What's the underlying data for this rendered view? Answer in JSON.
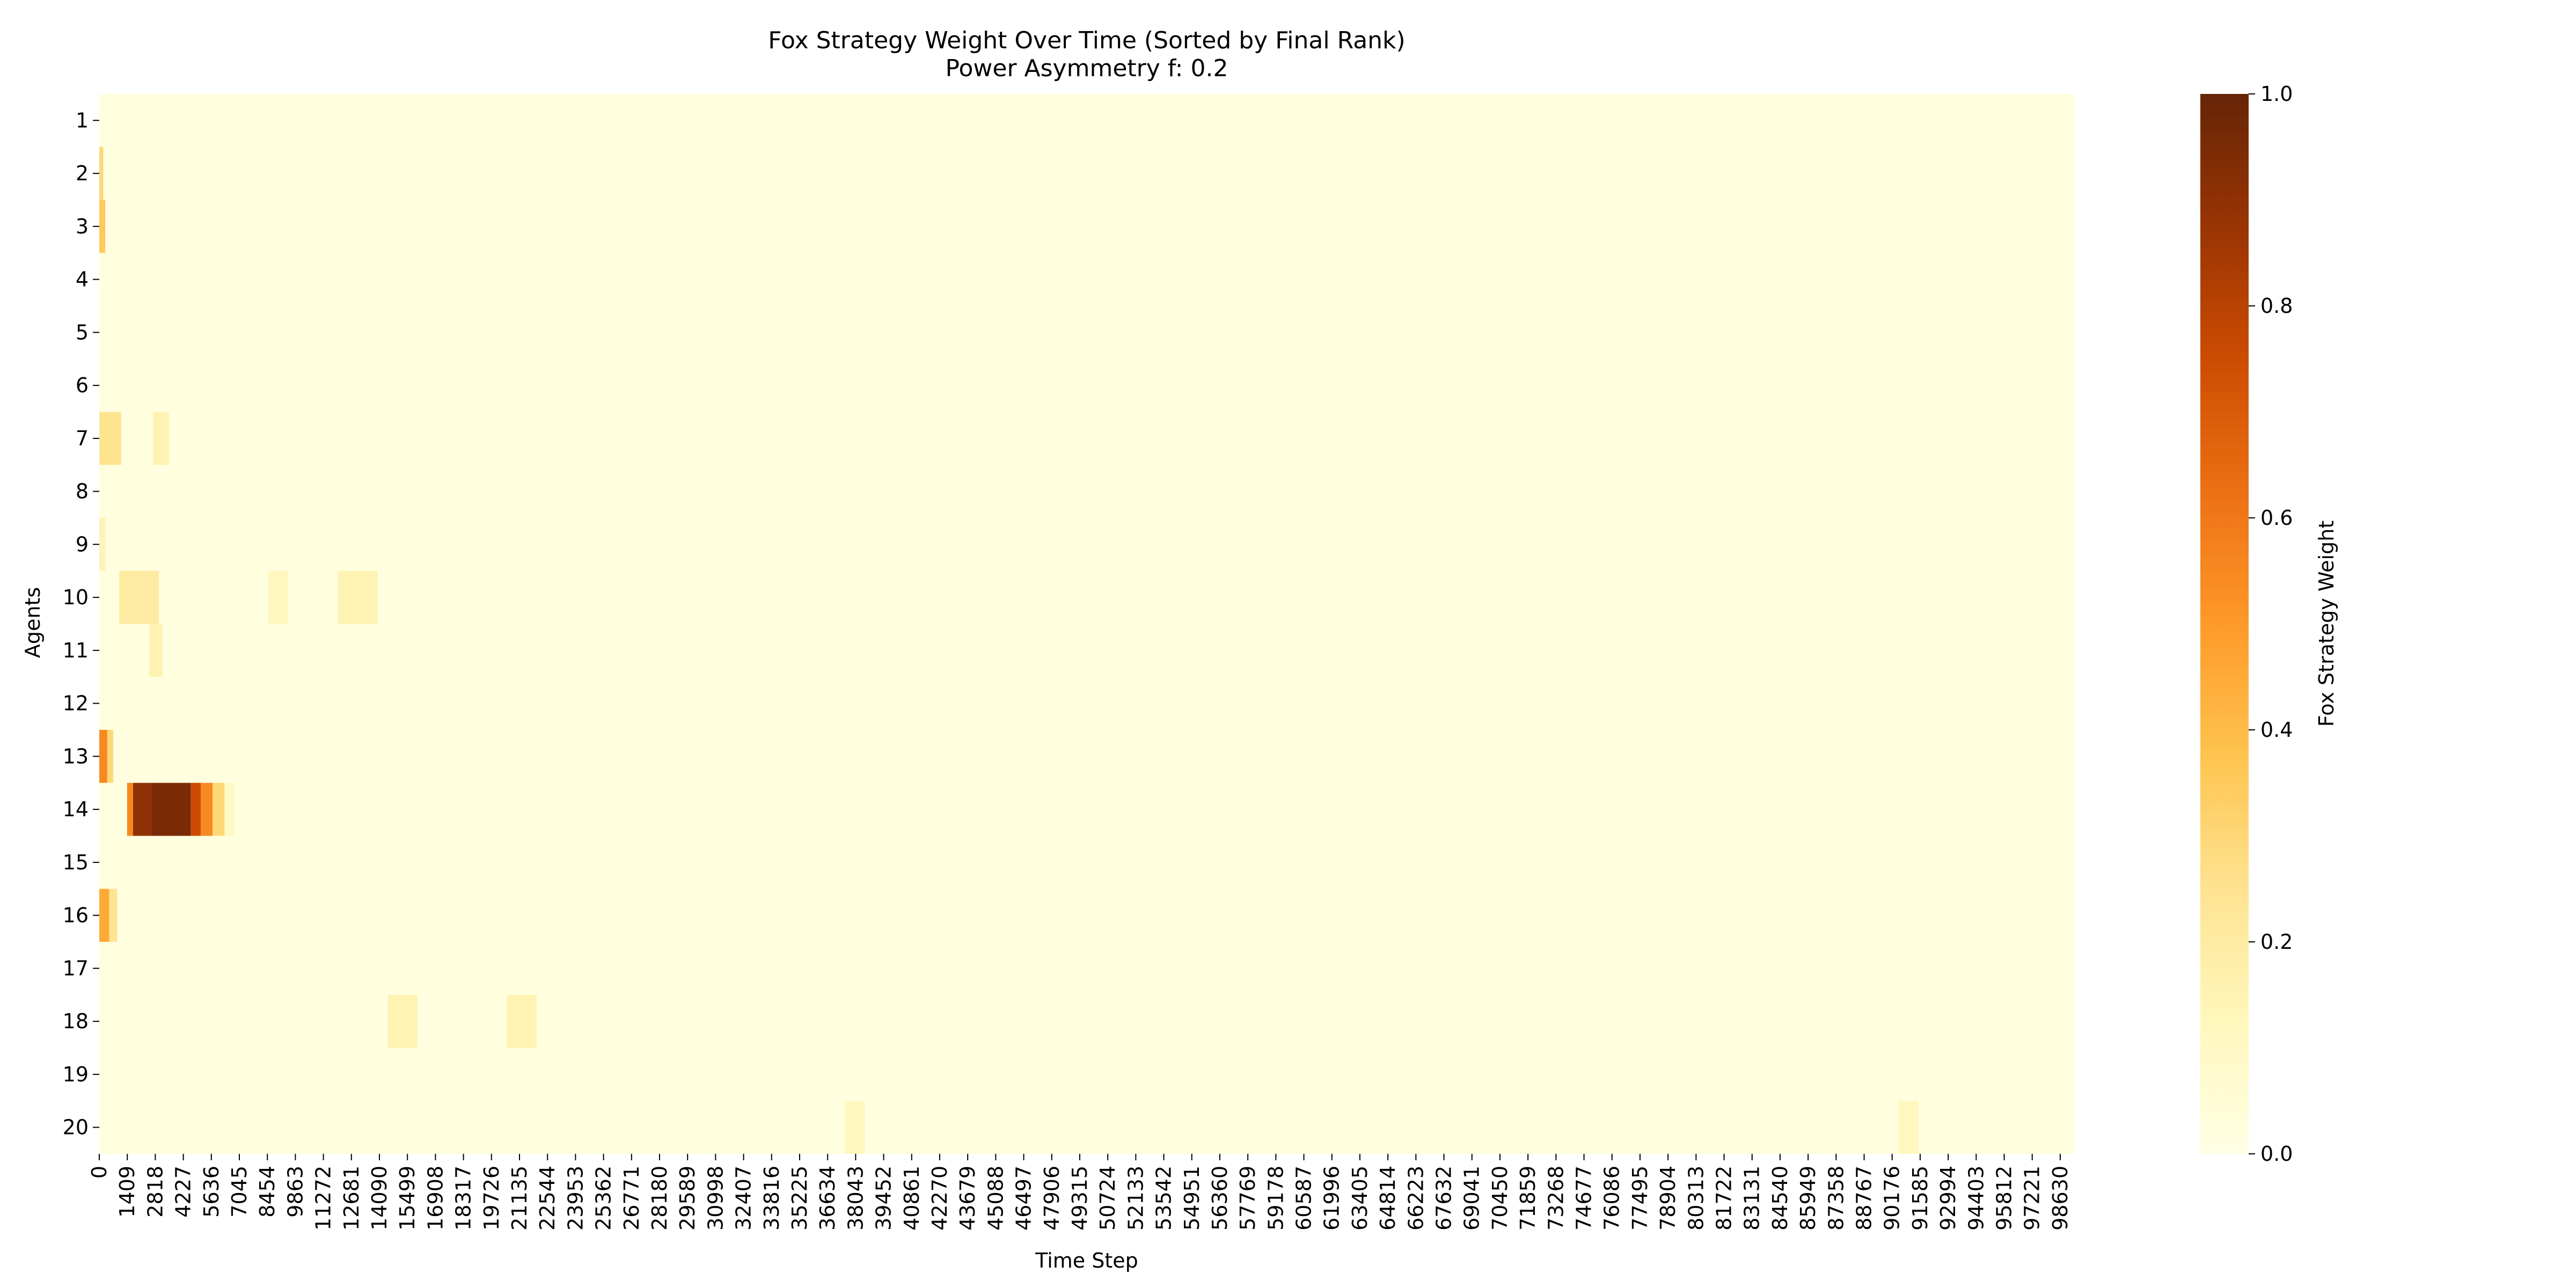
{
  "chart_data": {
    "type": "heatmap",
    "title": "Fox Strategy Weight Over Time (Sorted by Final Rank)",
    "subtitle": "Power Asymmetry f: 0.2",
    "xlabel": "Time Step",
    "ylabel": "Agents",
    "colorbar_label": "Fox Strategy Weight",
    "colorbar_ticks": [
      "0.0",
      "0.2",
      "0.4",
      "0.6",
      "0.8",
      "1.0"
    ],
    "vmin": 0.0,
    "vmax": 1.0,
    "colormap": "YlOrBr",
    "colormap_stops": [
      "#ffffe5",
      "#fff7bc",
      "#fee391",
      "#fec44f",
      "#fe9929",
      "#ec7014",
      "#cc4c02",
      "#993404",
      "#662506"
    ],
    "x_range": [
      0,
      99334
    ],
    "x_tick_labels": [
      "0",
      "1409",
      "2818",
      "4227",
      "5636",
      "7045",
      "8454",
      "9863",
      "11272",
      "12681",
      "14090",
      "15499",
      "16908",
      "18317",
      "19726",
      "21135",
      "22544",
      "23953",
      "25362",
      "26771",
      "28180",
      "29589",
      "30998",
      "32407",
      "33816",
      "35225",
      "36634",
      "38043",
      "39452",
      "40861",
      "42270",
      "43679",
      "45088",
      "46497",
      "47906",
      "49315",
      "50724",
      "52133",
      "53542",
      "54951",
      "56360",
      "57769",
      "59178",
      "60587",
      "61996",
      "63405",
      "64814",
      "66223",
      "67632",
      "69041",
      "70450",
      "71859",
      "73268",
      "74677",
      "76086",
      "77495",
      "78904",
      "80313",
      "81722",
      "83131",
      "84540",
      "85949",
      "87358",
      "88767",
      "90176",
      "91585",
      "92994",
      "94403",
      "95812",
      "97221",
      "98630"
    ],
    "agents": [
      "1",
      "2",
      "3",
      "4",
      "5",
      "6",
      "7",
      "8",
      "9",
      "10",
      "11",
      "12",
      "13",
      "14",
      "15",
      "16",
      "17",
      "18",
      "19",
      "20"
    ],
    "background_weight": 0.02,
    "features": [
      {
        "agent": "2",
        "x_start": 0,
        "x_end": 200,
        "value": 0.3
      },
      {
        "agent": "3",
        "x_start": 0,
        "x_end": 300,
        "value": 0.35
      },
      {
        "agent": "7",
        "x_start": 0,
        "x_end": 1100,
        "value": 0.25
      },
      {
        "agent": "7",
        "x_start": 2700,
        "x_end": 3500,
        "value": 0.15
      },
      {
        "agent": "9",
        "x_start": 0,
        "x_end": 300,
        "value": 0.15
      },
      {
        "agent": "10",
        "x_start": 1000,
        "x_end": 3000,
        "value": 0.2
      },
      {
        "agent": "10",
        "x_start": 8500,
        "x_end": 9500,
        "value": 0.12
      },
      {
        "agent": "10",
        "x_start": 12000,
        "x_end": 14000,
        "value": 0.15
      },
      {
        "agent": "11",
        "x_start": 2500,
        "x_end": 3200,
        "value": 0.15
      },
      {
        "agent": "13",
        "x_start": 0,
        "x_end": 400,
        "value": 0.55
      },
      {
        "agent": "13",
        "x_start": 400,
        "x_end": 700,
        "value": 0.3
      },
      {
        "agent": "14",
        "x_start": 1400,
        "x_end": 1700,
        "value": 0.55
      },
      {
        "agent": "14",
        "x_start": 1700,
        "x_end": 2600,
        "value": 0.9
      },
      {
        "agent": "14",
        "x_start": 2600,
        "x_end": 4600,
        "value": 0.95
      },
      {
        "agent": "14",
        "x_start": 4600,
        "x_end": 5100,
        "value": 0.75
      },
      {
        "agent": "14",
        "x_start": 5100,
        "x_end": 5700,
        "value": 0.55
      },
      {
        "agent": "14",
        "x_start": 5700,
        "x_end": 6300,
        "value": 0.3
      },
      {
        "agent": "14",
        "x_start": 6300,
        "x_end": 6800,
        "value": 0.1
      },
      {
        "agent": "16",
        "x_start": 0,
        "x_end": 500,
        "value": 0.45
      },
      {
        "agent": "16",
        "x_start": 500,
        "x_end": 900,
        "value": 0.25
      },
      {
        "agent": "18",
        "x_start": 14500,
        "x_end": 16000,
        "value": 0.15
      },
      {
        "agent": "18",
        "x_start": 20500,
        "x_end": 22000,
        "value": 0.15
      },
      {
        "agent": "20",
        "x_start": 37500,
        "x_end": 38500,
        "value": 0.12
      },
      {
        "agent": "20",
        "x_start": 90500,
        "x_end": 91500,
        "value": 0.12
      }
    ]
  }
}
